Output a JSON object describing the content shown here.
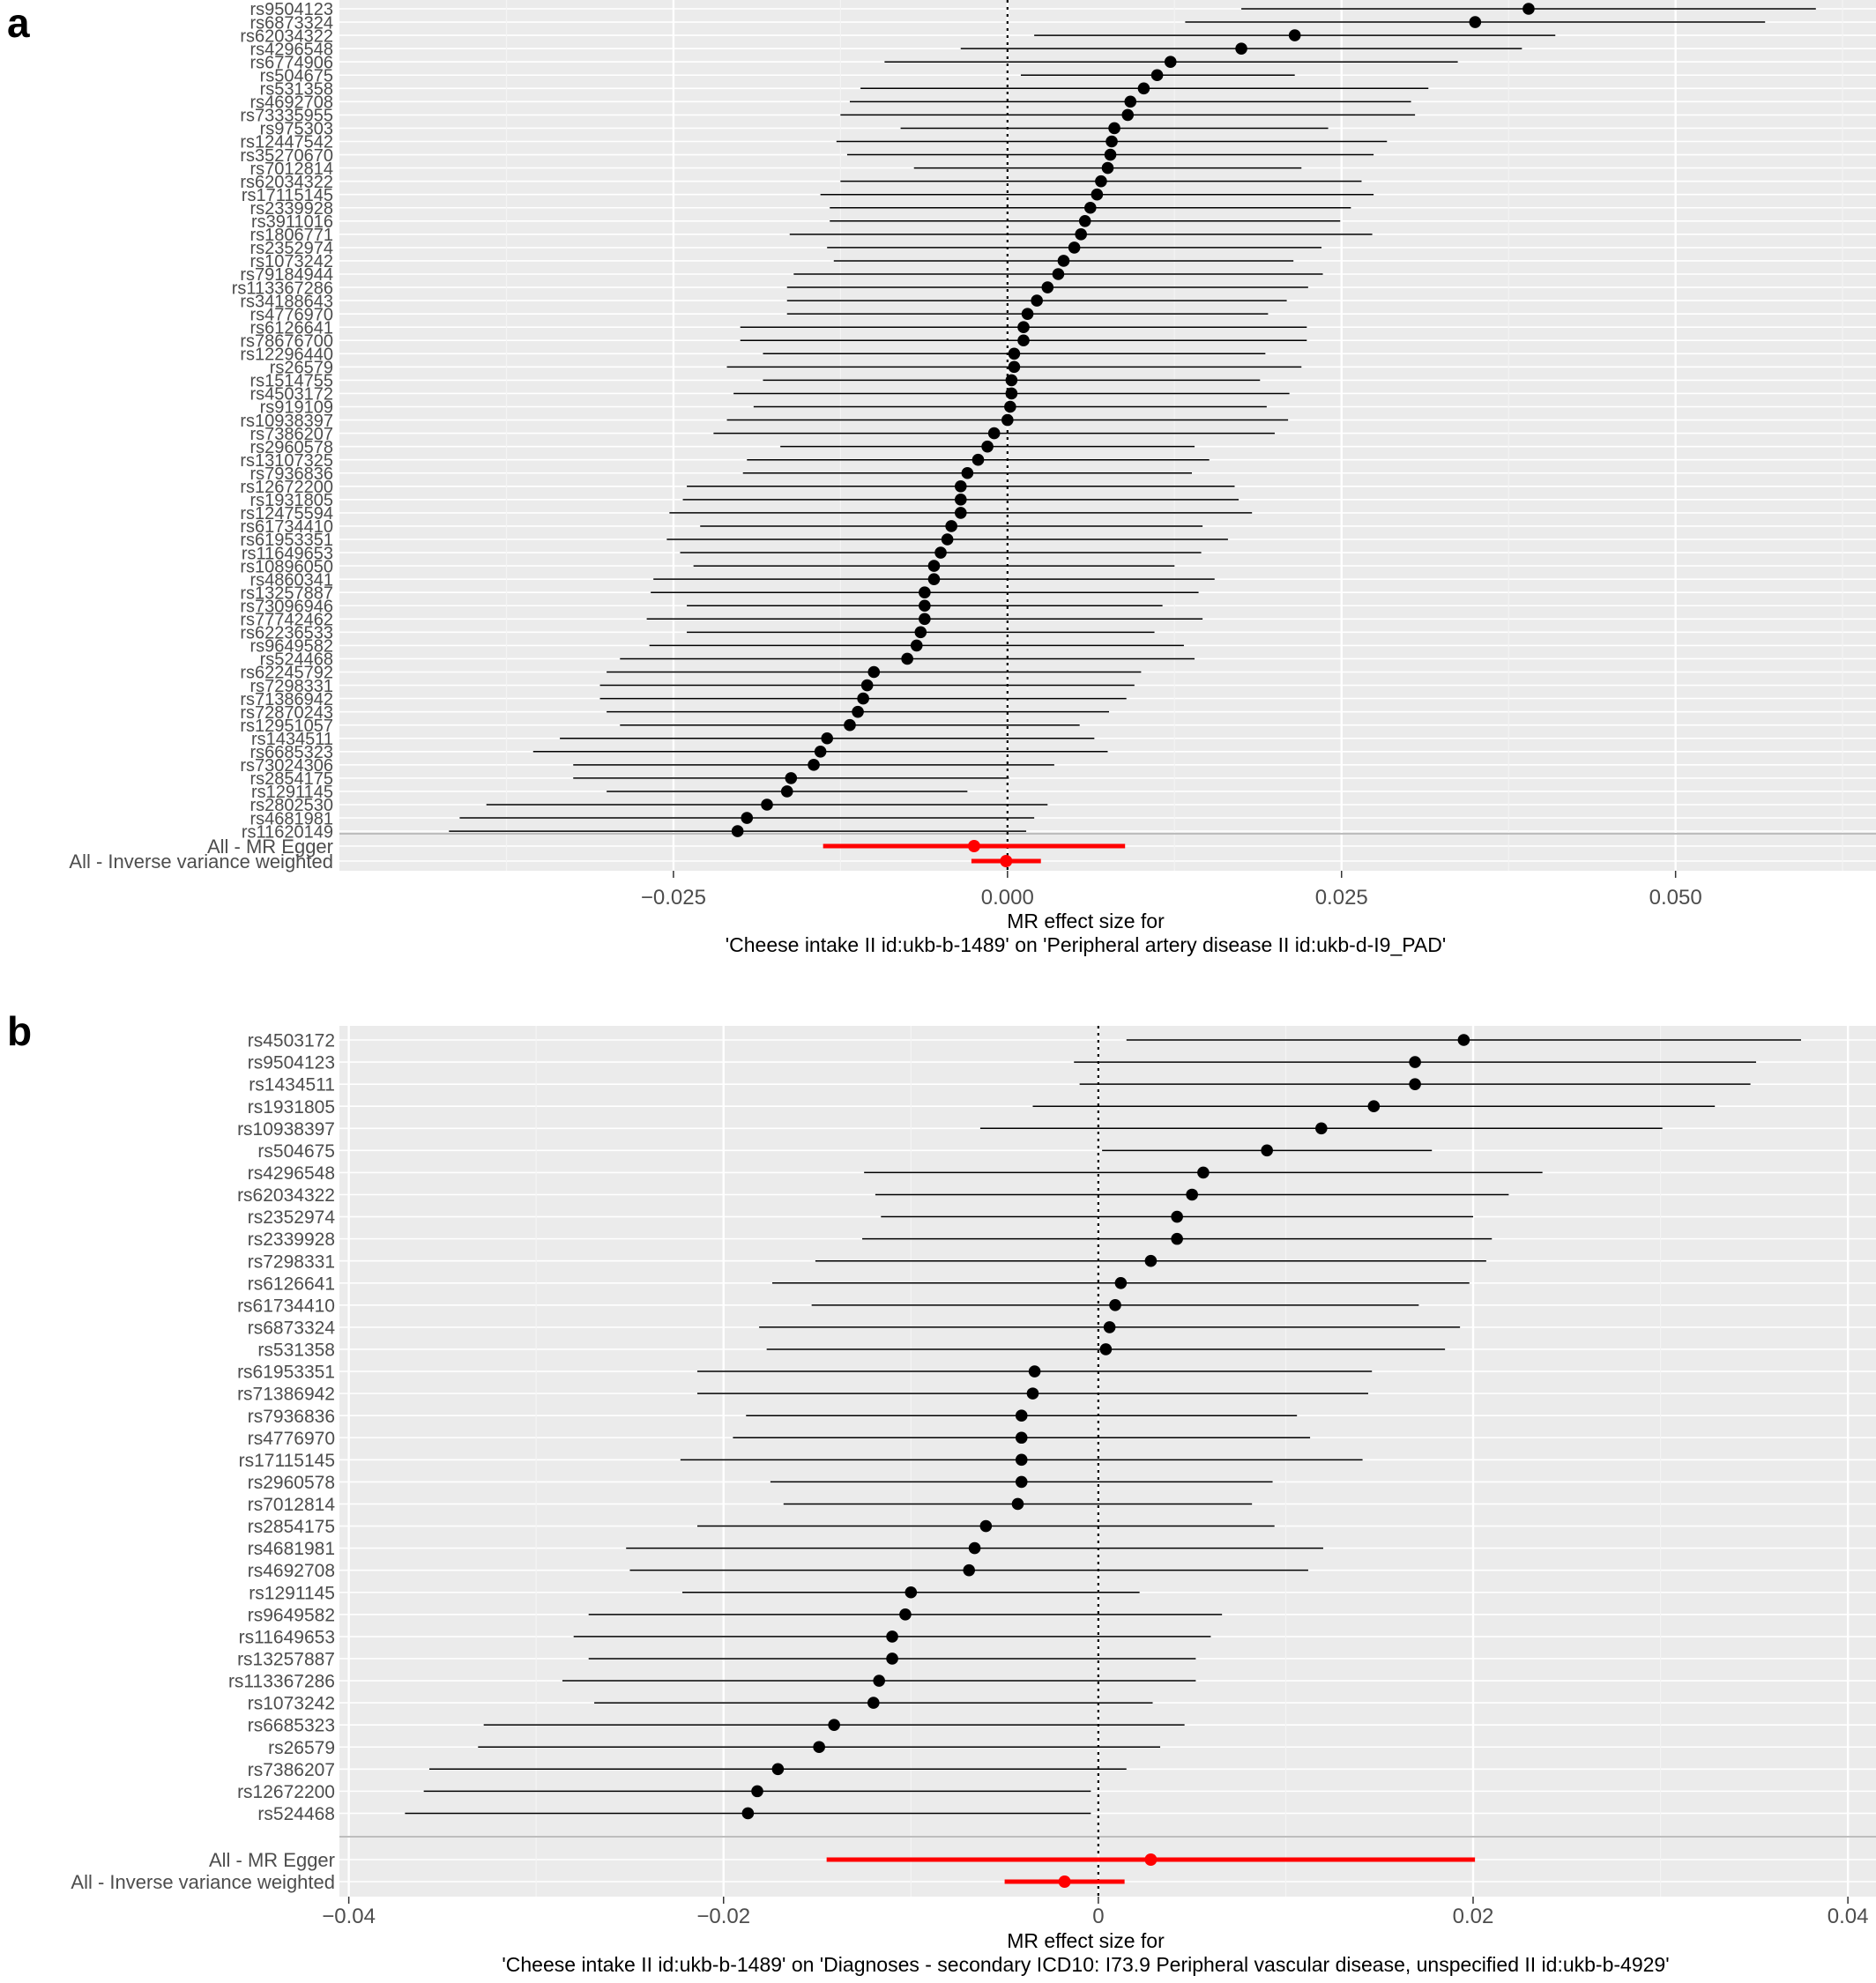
{
  "chart_data": [
    {
      "type": "scatter",
      "subtype": "forest",
      "panel_label": "a",
      "xlabel_line1": "MR effect size for",
      "xlabel_line2": "'Cheese intake II id:ukb-b-1489' on 'Peripheral artery disease II id:ukb-d-I9_PAD'",
      "xlim": [
        -0.05,
        0.065
      ],
      "xticks": [
        -0.025,
        0.0,
        0.025,
        0.05
      ],
      "xtick_labels": [
        "−0.025",
        "0.000",
        "0.025",
        "0.050"
      ],
      "reference_line": 0,
      "grid": true,
      "snps": [
        {
          "name": "rs9504123",
          "beta": 0.039,
          "lo": 0.0175,
          "hi": 0.0605
        },
        {
          "name": "rs6873324",
          "beta": 0.035,
          "lo": 0.0133,
          "hi": 0.0567
        },
        {
          "name": "rs62034322",
          "beta": 0.0215,
          "lo": 0.002,
          "hi": 0.041
        },
        {
          "name": "rs4296548",
          "beta": 0.0175,
          "lo": -0.0035,
          "hi": 0.0385
        },
        {
          "name": "rs6774906",
          "beta": 0.0122,
          "lo": -0.0092,
          "hi": 0.0337
        },
        {
          "name": "rs504675",
          "beta": 0.0112,
          "lo": 0.001,
          "hi": 0.0215
        },
        {
          "name": "rs531358",
          "beta": 0.0102,
          "lo": -0.011,
          "hi": 0.0315
        },
        {
          "name": "rs4692708",
          "beta": 0.0092,
          "lo": -0.0118,
          "hi": 0.0302
        },
        {
          "name": "rs73335955",
          "beta": 0.009,
          "lo": -0.0125,
          "hi": 0.0305
        },
        {
          "name": "rs975303",
          "beta": 0.008,
          "lo": -0.008,
          "hi": 0.024
        },
        {
          "name": "rs12447542",
          "beta": 0.0078,
          "lo": -0.0128,
          "hi": 0.0284
        },
        {
          "name": "rs35270670",
          "beta": 0.0077,
          "lo": -0.012,
          "hi": 0.0274
        },
        {
          "name": "rs7012814",
          "beta": 0.0075,
          "lo": -0.007,
          "hi": 0.022
        },
        {
          "name": "rs62034322",
          "beta": 0.007,
          "lo": -0.0125,
          "hi": 0.0265
        },
        {
          "name": "rs17115145",
          "beta": 0.0067,
          "lo": -0.014,
          "hi": 0.0274
        },
        {
          "name": "rs2339928",
          "beta": 0.0062,
          "lo": -0.0133,
          "hi": 0.0257
        },
        {
          "name": "rs3911016",
          "beta": 0.0058,
          "lo": -0.0133,
          "hi": 0.0249
        },
        {
          "name": "rs1806771",
          "beta": 0.0055,
          "lo": -0.0163,
          "hi": 0.0273
        },
        {
          "name": "rs2352974",
          "beta": 0.005,
          "lo": -0.0135,
          "hi": 0.0235
        },
        {
          "name": "rs1073242",
          "beta": 0.0042,
          "lo": -0.013,
          "hi": 0.0214
        },
        {
          "name": "rs79184944",
          "beta": 0.0038,
          "lo": -0.016,
          "hi": 0.0236
        },
        {
          "name": "rs113367286",
          "beta": 0.003,
          "lo": -0.0165,
          "hi": 0.0225
        },
        {
          "name": "rs34188643",
          "beta": 0.0022,
          "lo": -0.0165,
          "hi": 0.0209
        },
        {
          "name": "rs4776970",
          "beta": 0.0015,
          "lo": -0.0165,
          "hi": 0.0195
        },
        {
          "name": "rs6126641",
          "beta": 0.0012,
          "lo": -0.02,
          "hi": 0.0224
        },
        {
          "name": "rs78676700",
          "beta": 0.0012,
          "lo": -0.02,
          "hi": 0.0224
        },
        {
          "name": "rs12296440",
          "beta": 0.0005,
          "lo": -0.0183,
          "hi": 0.0193
        },
        {
          "name": "rs26579",
          "beta": 0.0005,
          "lo": -0.021,
          "hi": 0.022
        },
        {
          "name": "rs1514755",
          "beta": 0.0003,
          "lo": -0.0183,
          "hi": 0.0189
        },
        {
          "name": "rs4503172",
          "beta": 0.0003,
          "lo": -0.0205,
          "hi": 0.0211
        },
        {
          "name": "rs919109",
          "beta": 0.0002,
          "lo": -0.019,
          "hi": 0.0194
        },
        {
          "name": "rs10938397",
          "beta": 0.0,
          "lo": -0.021,
          "hi": 0.021
        },
        {
          "name": "rs7386207",
          "beta": -0.001,
          "lo": -0.022,
          "hi": 0.02
        },
        {
          "name": "rs2960578",
          "beta": -0.0015,
          "lo": -0.017,
          "hi": 0.014
        },
        {
          "name": "rs13107325",
          "beta": -0.0022,
          "lo": -0.0195,
          "hi": 0.0151
        },
        {
          "name": "rs7936836",
          "beta": -0.003,
          "lo": -0.0198,
          "hi": 0.0138
        },
        {
          "name": "rs12672200",
          "beta": -0.0035,
          "lo": -0.024,
          "hi": 0.017
        },
        {
          "name": "rs1931805",
          "beta": -0.0035,
          "lo": -0.0243,
          "hi": 0.0173
        },
        {
          "name": "rs12475594",
          "beta": -0.0035,
          "lo": -0.0253,
          "hi": 0.0183
        },
        {
          "name": "rs61734410",
          "beta": -0.0042,
          "lo": -0.023,
          "hi": 0.0146
        },
        {
          "name": "rs61953351",
          "beta": -0.0045,
          "lo": -0.0255,
          "hi": 0.0165
        },
        {
          "name": "rs11649653",
          "beta": -0.005,
          "lo": -0.0245,
          "hi": 0.0145
        },
        {
          "name": "rs10896050",
          "beta": -0.0055,
          "lo": -0.0235,
          "hi": 0.0125
        },
        {
          "name": "rs4860341",
          "beta": -0.0055,
          "lo": -0.0265,
          "hi": 0.0155
        },
        {
          "name": "rs13257887",
          "beta": -0.0062,
          "lo": -0.0267,
          "hi": 0.0143
        },
        {
          "name": "rs73096946",
          "beta": -0.0062,
          "lo": -0.024,
          "hi": 0.0116
        },
        {
          "name": "rs77742462",
          "beta": -0.0062,
          "lo": -0.027,
          "hi": 0.0146
        },
        {
          "name": "rs62236533",
          "beta": -0.0065,
          "lo": -0.024,
          "hi": 0.011
        },
        {
          "name": "rs9649582",
          "beta": -0.0068,
          "lo": -0.0268,
          "hi": 0.0132
        },
        {
          "name": "rs524468",
          "beta": -0.0075,
          "lo": -0.029,
          "hi": 0.014
        },
        {
          "name": "rs62245792",
          "beta": -0.01,
          "lo": -0.03,
          "hi": 0.01
        },
        {
          "name": "rs7298331",
          "beta": -0.0105,
          "lo": -0.0305,
          "hi": 0.0095
        },
        {
          "name": "rs71386942",
          "beta": -0.0108,
          "lo": -0.0305,
          "hi": 0.0089
        },
        {
          "name": "rs72870243",
          "beta": -0.0112,
          "lo": -0.03,
          "hi": 0.0076
        },
        {
          "name": "rs12951057",
          "beta": -0.0118,
          "lo": -0.029,
          "hi": 0.0054
        },
        {
          "name": "rs1434511",
          "beta": -0.0135,
          "lo": -0.0335,
          "hi": 0.0065
        },
        {
          "name": "rs6685323",
          "beta": -0.014,
          "lo": -0.0355,
          "hi": 0.0075
        },
        {
          "name": "rs73024306",
          "beta": -0.0145,
          "lo": -0.0325,
          "hi": 0.0035
        },
        {
          "name": "rs2854175",
          "beta": -0.0162,
          "lo": -0.0325,
          "hi": 0.0001
        },
        {
          "name": "rs1291145",
          "beta": -0.0165,
          "lo": -0.03,
          "hi": -0.003
        },
        {
          "name": "rs2802530",
          "beta": -0.018,
          "lo": -0.039,
          "hi": 0.003
        },
        {
          "name": "rs4681981",
          "beta": -0.0195,
          "lo": -0.041,
          "hi": 0.002
        },
        {
          "name": "rs11620149",
          "beta": -0.0202,
          "lo": -0.0418,
          "hi": 0.0014
        }
      ],
      "summary": [
        {
          "name": "All - MR Egger",
          "beta": -0.0025,
          "lo": -0.0138,
          "hi": 0.0088
        },
        {
          "name": "All - Inverse variance weighted",
          "beta": -0.0001,
          "lo": -0.0027,
          "hi": 0.0025
        }
      ]
    },
    {
      "type": "scatter",
      "subtype": "forest",
      "panel_label": "b",
      "xlabel_line1": "MR effect size for",
      "xlabel_line2": "'Cheese intake II id:ukb-b-1489' on 'Diagnoses - secondary ICD10: I73.9 Peripheral vascular disease, unspecified II id:ukb-b-4929'",
      "xlim": [
        -0.0405,
        0.0415
      ],
      "xticks": [
        -0.04,
        -0.02,
        0,
        0.02,
        0.04
      ],
      "xtick_labels": [
        "−0.04",
        "−0.02",
        "0",
        "0.02",
        "0.04"
      ],
      "reference_line": 0,
      "grid": true,
      "snps": [
        {
          "name": "rs4503172",
          "beta": 0.0195,
          "lo": 0.0015,
          "hi": 0.0375
        },
        {
          "name": "rs9504123",
          "beta": 0.0169,
          "lo": -0.0013,
          "hi": 0.0351
        },
        {
          "name": "rs1434511",
          "beta": 0.0169,
          "lo": -0.001,
          "hi": 0.0348
        },
        {
          "name": "rs1931805",
          "beta": 0.0147,
          "lo": -0.0035,
          "hi": 0.0329
        },
        {
          "name": "rs10938397",
          "beta": 0.0119,
          "lo": -0.0063,
          "hi": 0.0301
        },
        {
          "name": "rs504675",
          "beta": 0.009,
          "lo": 0.0002,
          "hi": 0.0178
        },
        {
          "name": "rs4296548",
          "beta": 0.0056,
          "lo": -0.0125,
          "hi": 0.0237
        },
        {
          "name": "rs62034322",
          "beta": 0.005,
          "lo": -0.0119,
          "hi": 0.0219
        },
        {
          "name": "rs2352974",
          "beta": 0.0042,
          "lo": -0.0116,
          "hi": 0.02
        },
        {
          "name": "rs2339928",
          "beta": 0.0042,
          "lo": -0.0126,
          "hi": 0.021
        },
        {
          "name": "rs7298331",
          "beta": 0.0028,
          "lo": -0.0151,
          "hi": 0.0207
        },
        {
          "name": "rs6126641",
          "beta": 0.0012,
          "lo": -0.0174,
          "hi": 0.0198
        },
        {
          "name": "rs61734410",
          "beta": 0.0009,
          "lo": -0.0153,
          "hi": 0.0171
        },
        {
          "name": "rs6873324",
          "beta": 0.0006,
          "lo": -0.0181,
          "hi": 0.0193
        },
        {
          "name": "rs531358",
          "beta": 0.0004,
          "lo": -0.0177,
          "hi": 0.0185
        },
        {
          "name": "rs61953351",
          "beta": -0.0034,
          "lo": -0.0214,
          "hi": 0.0146
        },
        {
          "name": "rs71386942",
          "beta": -0.0035,
          "lo": -0.0214,
          "hi": 0.0144
        },
        {
          "name": "rs7936836",
          "beta": -0.0041,
          "lo": -0.0188,
          "hi": 0.0106
        },
        {
          "name": "rs4776970",
          "beta": -0.0041,
          "lo": -0.0195,
          "hi": 0.0113
        },
        {
          "name": "rs17115145",
          "beta": -0.0041,
          "lo": -0.0223,
          "hi": 0.0141
        },
        {
          "name": "rs2960578",
          "beta": -0.0041,
          "lo": -0.0175,
          "hi": 0.0093
        },
        {
          "name": "rs7012814",
          "beta": -0.0043,
          "lo": -0.0168,
          "hi": 0.0082
        },
        {
          "name": "rs2854175",
          "beta": -0.006,
          "lo": -0.0214,
          "hi": 0.0094
        },
        {
          "name": "rs4681981",
          "beta": -0.0066,
          "lo": -0.0252,
          "hi": 0.012
        },
        {
          "name": "rs4692708",
          "beta": -0.0069,
          "lo": -0.025,
          "hi": 0.0112
        },
        {
          "name": "rs1291145",
          "beta": -0.01,
          "lo": -0.0222,
          "hi": 0.0022
        },
        {
          "name": "rs9649582",
          "beta": -0.0103,
          "lo": -0.0272,
          "hi": 0.0066
        },
        {
          "name": "rs11649653",
          "beta": -0.011,
          "lo": -0.028,
          "hi": 0.006
        },
        {
          "name": "rs13257887",
          "beta": -0.011,
          "lo": -0.0272,
          "hi": 0.0052
        },
        {
          "name": "rs113367286",
          "beta": -0.0117,
          "lo": -0.0286,
          "hi": 0.0052
        },
        {
          "name": "rs1073242",
          "beta": -0.012,
          "lo": -0.0269,
          "hi": 0.0029
        },
        {
          "name": "rs6685323",
          "beta": -0.0141,
          "lo": -0.0328,
          "hi": 0.0046
        },
        {
          "name": "rs26579",
          "beta": -0.0149,
          "lo": -0.0331,
          "hi": 0.0033
        },
        {
          "name": "rs7386207",
          "beta": -0.0171,
          "lo": -0.0357,
          "hi": 0.0015
        },
        {
          "name": "rs12672200",
          "beta": -0.0182,
          "lo": -0.036,
          "hi": -0.0004
        },
        {
          "name": "rs524468",
          "beta": -0.0187,
          "lo": -0.037,
          "hi": -0.0004
        }
      ],
      "summary": [
        {
          "name": "All - MR Egger",
          "beta": 0.0028,
          "lo": -0.0145,
          "hi": 0.0201
        },
        {
          "name": "All - Inverse variance weighted",
          "beta": -0.0018,
          "lo": -0.005,
          "hi": 0.0014
        }
      ]
    }
  ],
  "colors": {
    "panel_background": "#ebebeb",
    "grid_major": "#ffffff",
    "grid_minor": "#f4f4f4",
    "point": "#000000",
    "summary": "#ff0000",
    "separator": "#bdbdbd",
    "tick_text": "#4d4d4d"
  }
}
